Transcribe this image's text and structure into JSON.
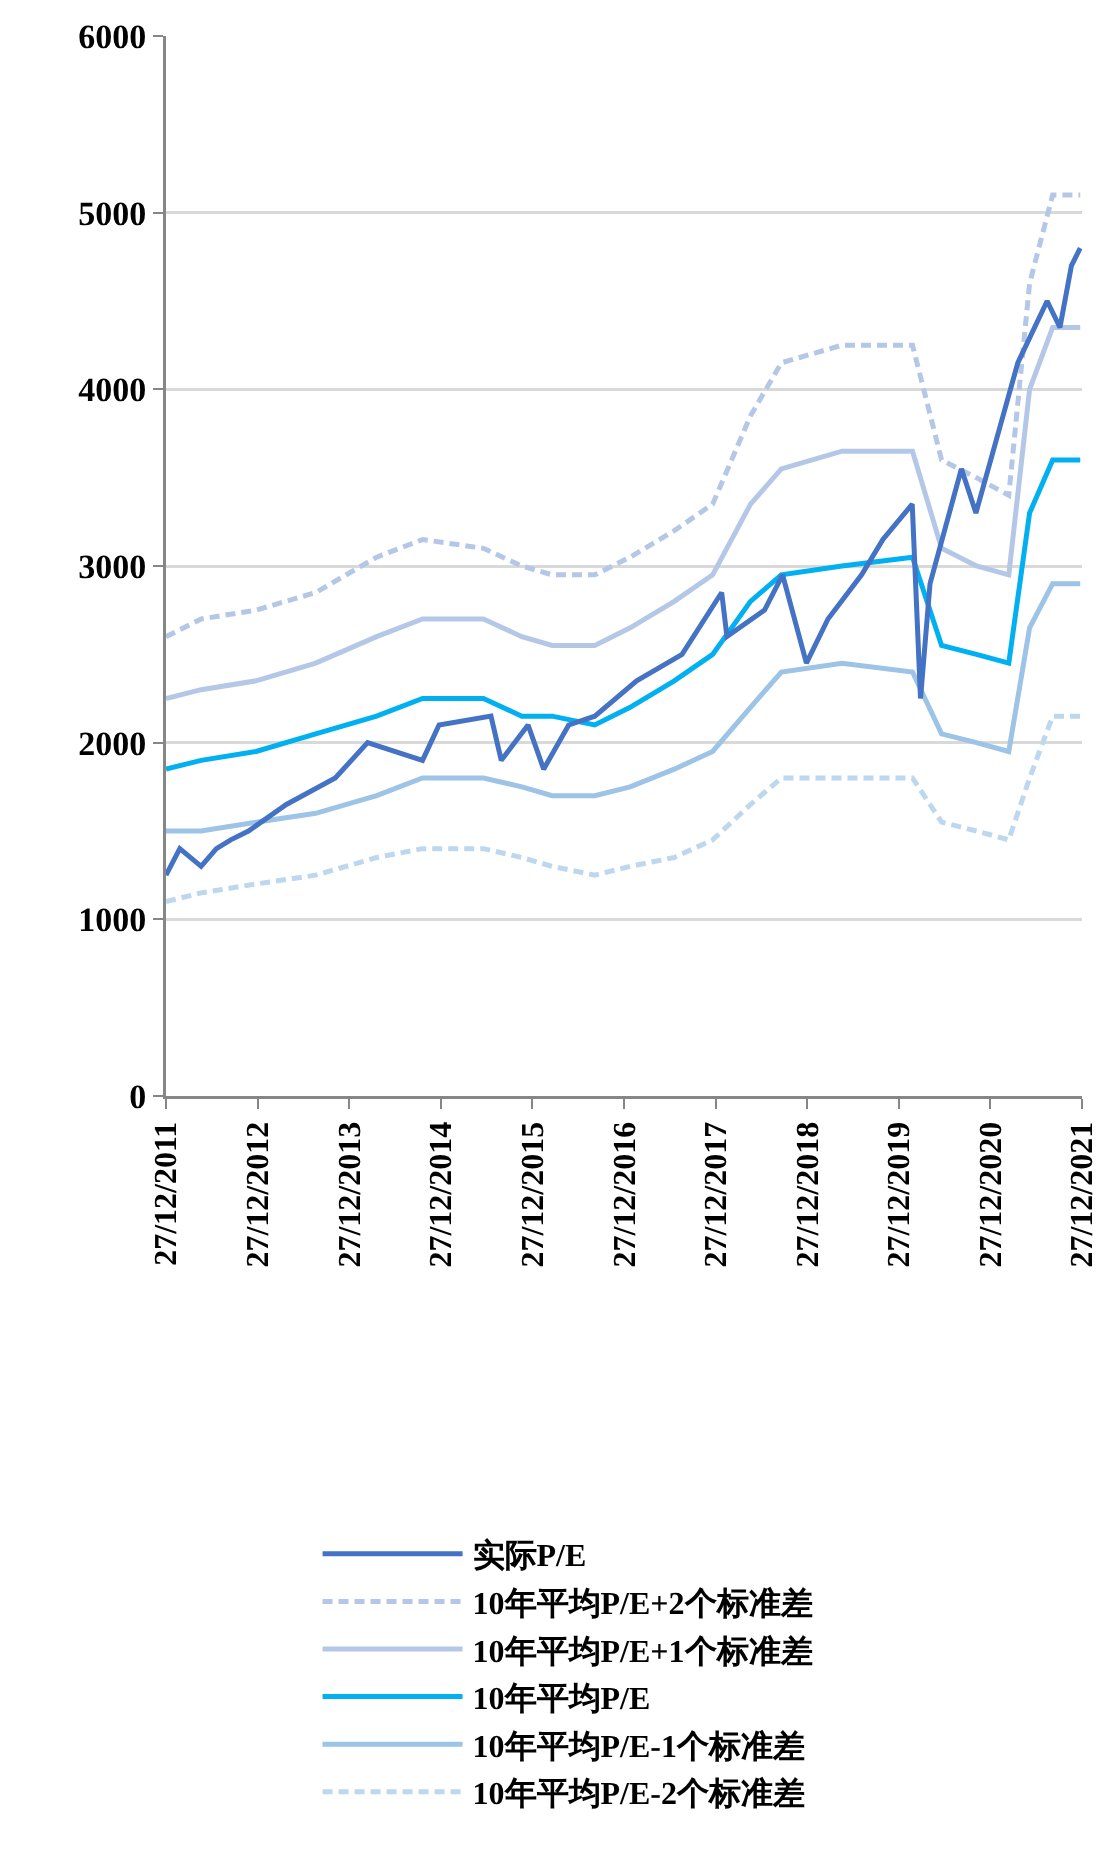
{
  "chart_data": {
    "type": "line",
    "x": [
      "2011-12-27",
      "2012-05-15",
      "2012-12-20",
      "2013-08-15",
      "2014-04-15",
      "2014-10-15",
      "2015-06-15",
      "2015-11-15",
      "2016-03-15",
      "2016-09-01",
      "2017-01-20",
      "2017-07-15",
      "2017-12-15",
      "2018-05-15",
      "2018-09-15",
      "2019-05-15",
      "2020-02-20",
      "2020-06-15",
      "2020-11-01",
      "2021-03-10",
      "2021-06-01",
      "2021-09-01",
      "2021-12-20"
    ],
    "series": [
      {
        "name": "实际P/E",
        "color": "#4472c4",
        "line_style": "solid",
        "x": [
          "2011-12-27",
          "2012-02-20",
          "2012-05-15",
          "2012-07-15",
          "2012-09-10",
          "2012-11-20",
          "2013-04-20",
          "2013-11-01",
          "2014-03-10",
          "2014-10-15",
          "2014-12-20",
          "2015-07-15",
          "2015-08-25",
          "2015-12-10",
          "2016-02-10",
          "2016-05-20",
          "2016-09-01",
          "2017-02-15",
          "2017-08-15",
          "2018-01-20",
          "2018-02-10",
          "2018-07-10",
          "2018-09-20",
          "2018-12-24",
          "2019-03-20",
          "2019-08-01",
          "2019-10-25",
          "2020-02-19",
          "2020-03-23",
          "2020-04-30",
          "2020-09-02",
          "2020-10-30",
          "2021-02-15",
          "2021-04-15",
          "2021-08-10",
          "2021-09-30",
          "2021-11-15",
          "2021-12-20"
        ],
        "values": [
          1250,
          1400,
          1300,
          1400,
          1450,
          1500,
          1650,
          1800,
          2000,
          1900,
          2100,
          2150,
          1900,
          2100,
          1850,
          2100,
          2150,
          2350,
          2500,
          2850,
          2600,
          2750,
          2950,
          2450,
          2700,
          2950,
          3150,
          3350,
          2250,
          2900,
          3550,
          3300,
          3850,
          4150,
          4500,
          4350,
          4700,
          4800
        ]
      },
      {
        "name": "10年平均P/E+2个标准差",
        "color": "#b4c7e7",
        "line_style": "dashed",
        "values": [
          2600,
          2700,
          2750,
          2850,
          3050,
          3150,
          3100,
          3000,
          2950,
          2950,
          3050,
          3200,
          3350,
          3850,
          4150,
          4250,
          4250,
          3600,
          3500,
          3400,
          4600,
          5100,
          5100
        ]
      },
      {
        "name": "10年平均P/E+1个标准差",
        "color": "#b4c7e7",
        "line_style": "solid",
        "values": [
          2250,
          2300,
          2350,
          2450,
          2600,
          2700,
          2700,
          2600,
          2550,
          2550,
          2650,
          2800,
          2950,
          3350,
          3550,
          3650,
          3650,
          3100,
          3000,
          2950,
          4000,
          4350,
          4350
        ]
      },
      {
        "name": "10年平均P/E",
        "color": "#00b0f0",
        "line_style": "solid",
        "values": [
          1850,
          1900,
          1950,
          2050,
          2150,
          2250,
          2250,
          2150,
          2150,
          2100,
          2200,
          2350,
          2500,
          2800,
          2950,
          3000,
          3050,
          2550,
          2500,
          2450,
          3300,
          3600,
          3600
        ]
      },
      {
        "name": "10年平均P/E-1个标准差",
        "color": "#9dc3e6",
        "line_style": "solid",
        "values": [
          1500,
          1500,
          1550,
          1600,
          1700,
          1800,
          1800,
          1750,
          1700,
          1700,
          1750,
          1850,
          1950,
          2200,
          2400,
          2450,
          2400,
          2050,
          2000,
          1950,
          2650,
          2900,
          2900
        ]
      },
      {
        "name": "10年平均P/E-2个标准差",
        "color": "#bdd7ee",
        "line_style": "dashed",
        "values": [
          1100,
          1150,
          1200,
          1250,
          1350,
          1400,
          1400,
          1350,
          1300,
          1250,
          1300,
          1350,
          1450,
          1650,
          1800,
          1800,
          1800,
          1550,
          1500,
          1450,
          1800,
          2150,
          2150
        ]
      }
    ],
    "xlim": [
      "2011-12-27",
      "2021-12-27"
    ],
    "xticks": [
      {
        "value": "2011-12-27",
        "label": "27/12/2011"
      },
      {
        "value": "2012-12-27",
        "label": "27/12/2012"
      },
      {
        "value": "2013-12-27",
        "label": "27/12/2013"
      },
      {
        "value": "2014-12-27",
        "label": "27/12/2014"
      },
      {
        "value": "2015-12-27",
        "label": "27/12/2015"
      },
      {
        "value": "2016-12-27",
        "label": "27/12/2016"
      },
      {
        "value": "2017-12-27",
        "label": "27/12/2017"
      },
      {
        "value": "2018-12-27",
        "label": "27/12/2018"
      },
      {
        "value": "2019-12-27",
        "label": "27/12/2019"
      },
      {
        "value": "2020-12-27",
        "label": "27/12/2020"
      },
      {
        "value": "2021-12-27",
        "label": "27/12/2021"
      }
    ],
    "ylim": [
      0,
      6000
    ],
    "yticks": [
      0,
      1000,
      2000,
      3000,
      4000,
      5000,
      6000
    ],
    "grid": "y",
    "legend": "bottom"
  }
}
